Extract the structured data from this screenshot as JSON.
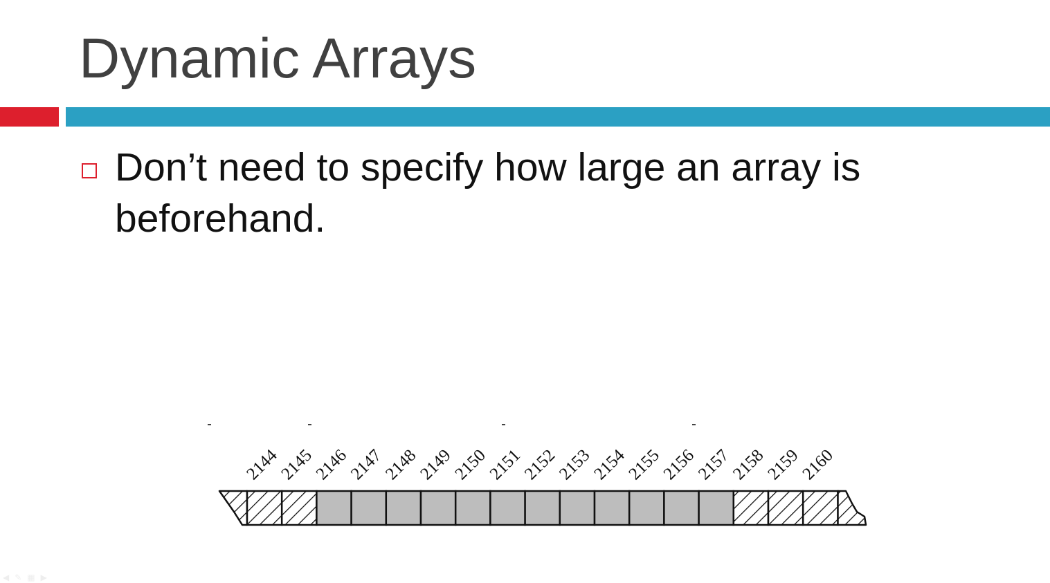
{
  "slide": {
    "title": "Dynamic Arrays",
    "bullet": "Don’t need to specify how large an array is beforehand."
  },
  "colors": {
    "accent_red": "#dd1f2d",
    "accent_blue": "#2ba0c3",
    "title_text": "#404040",
    "cell_fill": "#bdbdbd"
  },
  "memory_diagram": {
    "addresses": [
      "2144",
      "2145",
      "2146",
      "2147",
      "2148",
      "2149",
      "2150",
      "2151",
      "2152",
      "2153",
      "2154",
      "2155",
      "2156",
      "2157",
      "2158",
      "2159",
      "2160"
    ],
    "cells": [
      "hatched",
      "hatched",
      "filled",
      "filled",
      "filled",
      "filled",
      "filled",
      "filled",
      "filled",
      "filled",
      "filled",
      "filled",
      "filled",
      "filled",
      "hatched",
      "hatched",
      "hatched"
    ]
  },
  "nav_icons": [
    "previous-icon",
    "pen-icon",
    "slide-menu-icon",
    "next-icon"
  ]
}
